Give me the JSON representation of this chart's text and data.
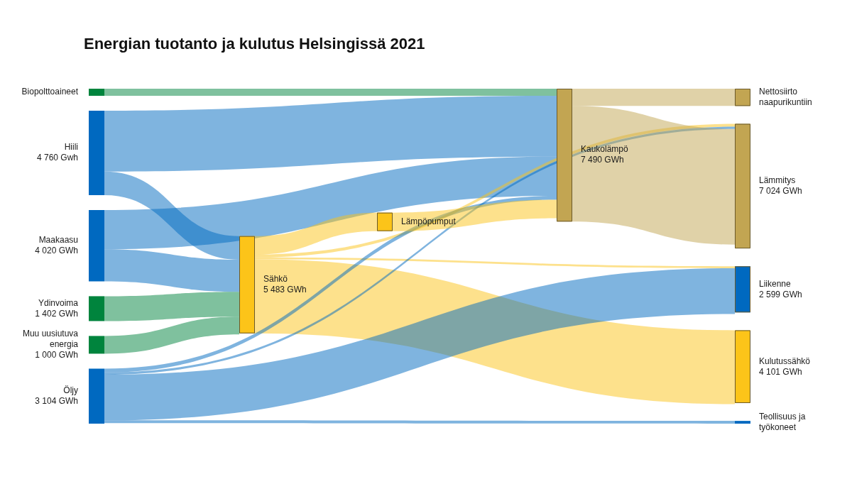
{
  "chart_data": {
    "type": "other",
    "title": "Energian tuotanto ja kulutus Helsingissä 2021",
    "categories": [
      "Biopolttoaineet",
      "Hiili",
      "Maakaasu",
      "Ydinvoima",
      "Muu uusiutuva energia",
      "Öljy",
      "Sähkö",
      "Lämpöpumput",
      "Kaukolämpö",
      "Nettosiirto naapurikuntiin",
      "Lämmitys",
      "Liikenne",
      "Kulutussähkö",
      "Teollisuus ja työkoneet"
    ],
    "values": [
      null,
      4760,
      4020,
      1402,
      1000,
      3104,
      5483,
      null,
      7490,
      null,
      7024,
      2599,
      4101,
      null
    ],
    "value_labels": [
      null,
      "4 760 Gwh",
      "4 020 GWh",
      "1 402 GWh",
      "1 000 GWh",
      "3 104 GWh",
      "5 483 GWh",
      null,
      "7 490 GWh",
      null,
      "7 024 GWh",
      "2 599 GWh",
      "4 101 GWh",
      null
    ],
    "colors": [
      "#00843d",
      "#0069c0",
      "#0069c0",
      "#00843d",
      "#00843d",
      "#0069c0",
      "#fcc419",
      "#fcc419",
      "#c2a552",
      "#c2a552",
      "#c2a552",
      "#0069c0",
      "#fcc419",
      "#0069c0"
    ]
  }
}
